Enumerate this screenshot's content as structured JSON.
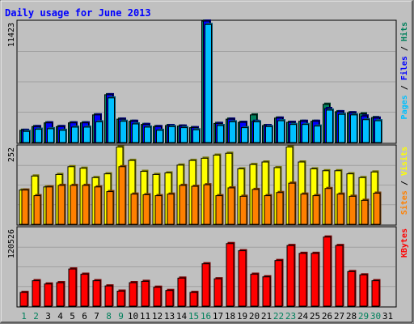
{
  "chart_data": {
    "type": "bar",
    "title": "Daily usage for June 2013",
    "categories": [
      "1",
      "2",
      "3",
      "4",
      "5",
      "6",
      "7",
      "8",
      "9",
      "10",
      "11",
      "12",
      "13",
      "14",
      "15",
      "16",
      "17",
      "18",
      "19",
      "20",
      "21",
      "22",
      "23",
      "24",
      "25",
      "26",
      "27",
      "28",
      "29",
      "30",
      "31"
    ],
    "weekend_days": [
      1,
      2,
      8,
      9,
      15,
      16,
      22,
      23,
      29,
      30
    ],
    "colors": {
      "title": "#0000ff",
      "background": "#c0c0c0",
      "plot_background": "#c0c0c0",
      "weekday_label": "#000000",
      "weekend_label": "#00805c",
      "hits": "#00805c",
      "files": "#0000ff",
      "pages": "#00c0ff",
      "visits": "#ffff00",
      "sites": "#ff8000",
      "kbytes": "#ff0000"
    },
    "panels": [
      {
        "name": "hits_files_pages",
        "ymax": 11423,
        "ymax_label": "11423",
        "legend": [
          {
            "label": "Pages",
            "color": "#00c0ff"
          },
          {
            "label": "Files",
            "color": "#0000ff"
          },
          {
            "label": "Hits",
            "color": "#00805c"
          }
        ],
        "series": [
          {
            "name": "Hits",
            "values": [
              1150,
              1500,
              1850,
              1500,
              1850,
              1850,
              2600,
              4500,
              2200,
              2000,
              1700,
              1500,
              1600,
              1550,
              1400,
              11423,
              1800,
              2200,
              1900,
              2600,
              1600,
              2300,
              1900,
              2000,
              2000,
              3600,
              2900,
              2800,
              2700,
              2350,
              null
            ]
          },
          {
            "name": "Files",
            "values": [
              1150,
              1500,
              1850,
              1500,
              1850,
              1850,
              2600,
              4500,
              2200,
              2000,
              1700,
              1500,
              1600,
              1550,
              1400,
              11423,
              1800,
              2200,
              1900,
              2000,
              1600,
              2300,
              1900,
              2000,
              2000,
              3200,
              2900,
              2800,
              2500,
              2300,
              null
            ]
          },
          {
            "name": "Pages",
            "values": [
              1050,
              1250,
              1300,
              1150,
              1450,
              1450,
              1950,
              4200,
              2000,
              1750,
              1450,
              1150,
              1500,
              1400,
              1200,
              11100,
              1600,
              1950,
              1400,
              1950,
              1500,
              2050,
              1700,
              1700,
              1550,
              3050,
              2650,
              2600,
              2150,
              2050,
              null
            ]
          }
        ]
      },
      {
        "name": "visits_sites",
        "ymax": 252,
        "ymax_label": "252",
        "legend": [
          {
            "label": "Sites",
            "color": "#ff8000"
          },
          {
            "label": "Visits",
            "color": "#ffff00"
          }
        ],
        "series": [
          {
            "name": "Visits",
            "values": [
              110,
              155,
              120,
              160,
              185,
              180,
              150,
              162,
              248,
              205,
              170,
              160,
              165,
              190,
              205,
              212,
              222,
              228,
              178,
              192,
              200,
              182,
              248,
              200,
              178,
              172,
              172,
              162,
              150,
              168,
              null
            ]
          },
          {
            "name": "Sites",
            "values": [
              110,
              92,
              120,
              125,
              125,
              125,
              120,
              105,
              185,
              97,
              95,
              92,
              97,
              125,
              122,
              127,
              92,
              117,
              90,
              112,
              92,
              102,
              132,
              97,
              92,
              115,
              97,
              90,
              77,
              100,
              null
            ]
          }
        ]
      },
      {
        "name": "kbytes",
        "ymax": 120526,
        "ymax_label": "120526",
        "legend": [
          {
            "label": "KBytes",
            "color": "#ff0000"
          }
        ],
        "series": [
          {
            "name": "KBytes",
            "values": [
              21000,
              39000,
              34000,
              36000,
              57000,
              49000,
              39000,
              31000,
              23000,
              36000,
              38000,
              29000,
              24000,
              43000,
              21000,
              65000,
              42000,
              96000,
              85000,
              49000,
              45000,
              70000,
              93000,
              81000,
              81000,
              106000,
              93000,
              53000,
              48000,
              39000,
              null
            ]
          }
        ]
      }
    ]
  }
}
